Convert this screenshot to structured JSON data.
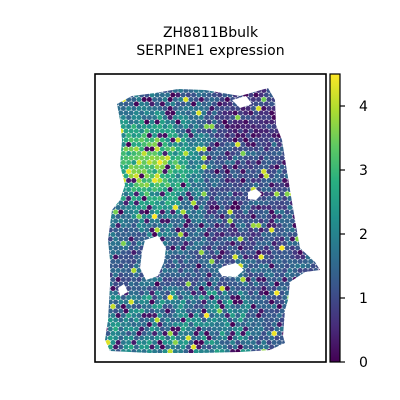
{
  "chart_data": {
    "type": "heatmap",
    "subtype": "spatial-hexbin",
    "title_lines": [
      "ZH8811Bbulk",
      "SERPINE1 expression"
    ],
    "xlabel": "",
    "ylabel": "",
    "colorbar": {
      "colormap": "viridis",
      "range": [
        0,
        4.5
      ],
      "ticks": [
        0,
        1,
        2,
        3,
        4
      ],
      "tick_labels": [
        "0",
        "1",
        "2",
        "3",
        "4"
      ],
      "placement": "right",
      "colors": [
        "#440154",
        "#3b528b",
        "#21918c",
        "#5ec962",
        "#fde725"
      ]
    },
    "value_summary": {
      "min": 0,
      "max": 4.5,
      "typical": "0.5 - 1.5",
      "high_region": "upper-left lobe, values 2.5 - 4",
      "holes": [
        "left-middle",
        "center-right",
        "right-upper"
      ]
    },
    "grid": false
  }
}
